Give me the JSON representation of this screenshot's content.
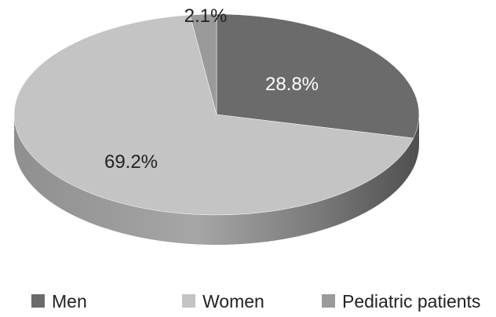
{
  "chart_data": {
    "type": "pie",
    "style": "3d",
    "categories": [
      "Men",
      "Women",
      "Pediatric patients"
    ],
    "values": [
      28.8,
      69.2,
      2.1
    ],
    "data_labels": [
      "28.8%",
      "69.2%",
      "2.1%"
    ],
    "colors": {
      "Men": "#6b6b6b",
      "Women": "#c4c4c4",
      "Pediatric patients": "#9a9a9a"
    },
    "legend_position": "bottom",
    "title": ""
  }
}
